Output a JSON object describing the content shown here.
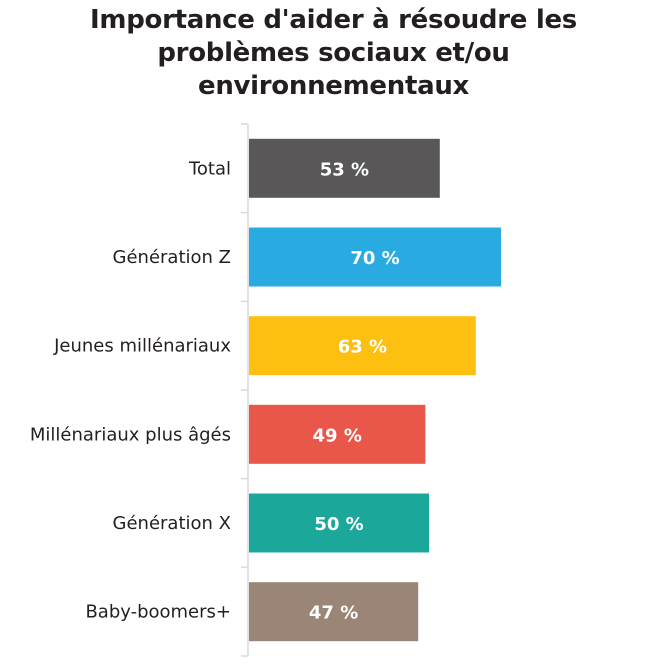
{
  "chart_data": {
    "type": "bar",
    "orientation": "horizontal",
    "title": "Importance d'aider à résoudre les problèmes sociaux et/ou environnementaux",
    "title_lines": [
      "Importance d'aider à résoudre les",
      "problèmes sociaux et/ou",
      "environnementaux"
    ],
    "categories": [
      "Total",
      "Génération Z",
      "Jeunes millénariaux",
      "Millénariaux plus âgés",
      "Génération X",
      "Baby-boomers+"
    ],
    "values": [
      53,
      70,
      63,
      49,
      50,
      47
    ],
    "labels": [
      "53 %",
      "70 %",
      "63 %",
      "49 %",
      "50 %",
      "47 %"
    ],
    "colors": [
      "#595757",
      "#29abe2",
      "#fdc010",
      "#e8574a",
      "#1ba89a",
      "#9a8576"
    ],
    "xlabel": "",
    "ylabel": "",
    "xlim": [
      0,
      100
    ],
    "unit": "%",
    "grid": false,
    "legend": "none"
  }
}
